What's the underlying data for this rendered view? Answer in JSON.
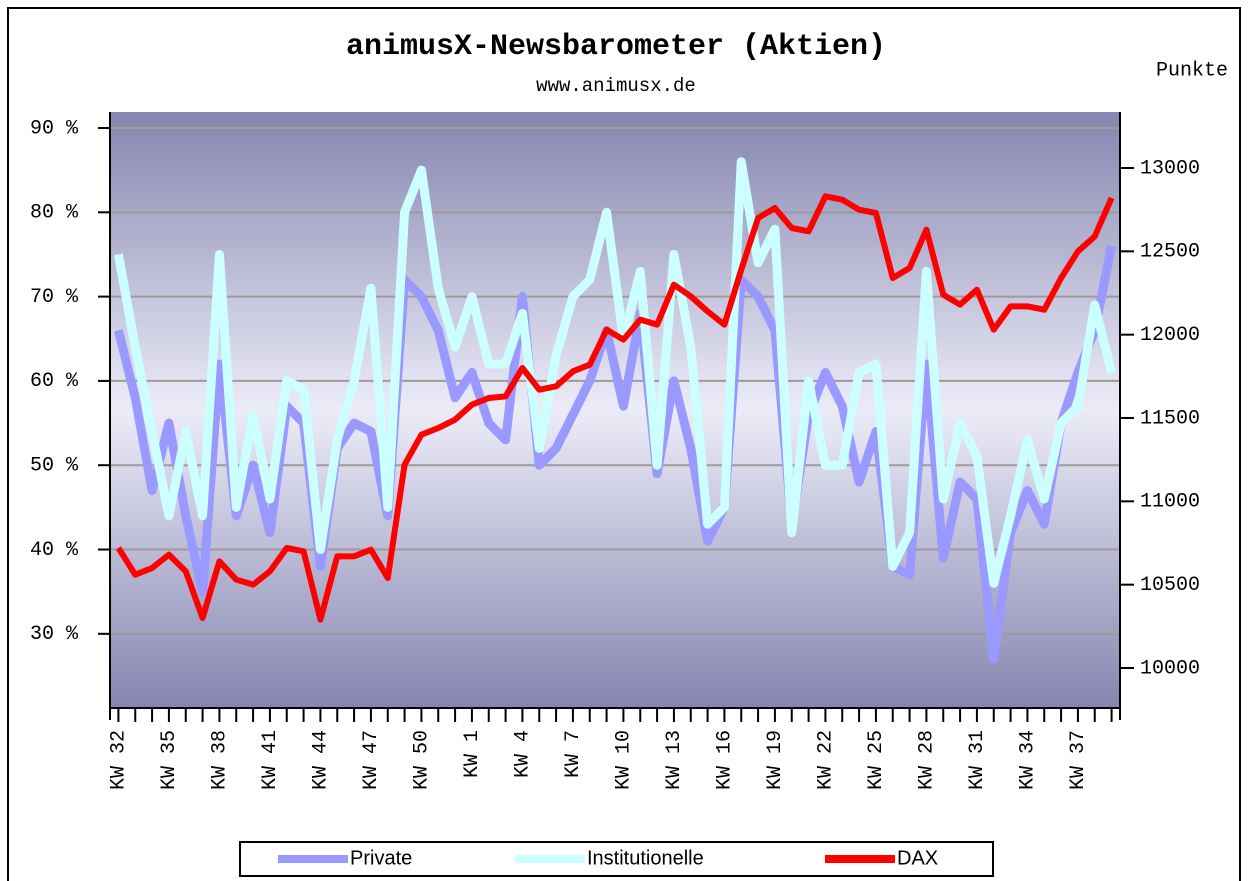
{
  "chart_data": {
    "type": "line",
    "title": "animusX-Newsbarometer (Aktien)",
    "subtitle": "www.animusx.de",
    "y2_label": "Punkte",
    "categories": [
      "KW 32",
      null,
      null,
      "KW 35",
      null,
      null,
      "KW 38",
      null,
      null,
      "KW 41",
      null,
      null,
      "KW 44",
      null,
      null,
      "KW 47",
      null,
      null,
      "KW 50",
      null,
      null,
      "KW 1",
      null,
      null,
      "KW 4",
      null,
      null,
      "KW 7",
      null,
      null,
      "KW 10",
      null,
      null,
      "KW 13",
      null,
      null,
      "KW 16",
      null,
      null,
      "KW 19",
      null,
      null,
      "KW 22",
      null,
      null,
      "KW 25",
      null,
      null,
      "KW 28",
      null,
      null,
      "KW 31",
      null,
      null,
      "KW 34",
      null,
      null,
      "KW 37",
      null,
      null
    ],
    "series": [
      {
        "name": "Private",
        "color": "#9999ff",
        "values": [
          66,
          58,
          47,
          55,
          44,
          35,
          62,
          44,
          50,
          42,
          57,
          55,
          38,
          52,
          55,
          54,
          44,
          72,
          70,
          66,
          58,
          61,
          55,
          53,
          70,
          50,
          52,
          56,
          60,
          66,
          57,
          68,
          49,
          60,
          52,
          41,
          45,
          72,
          70,
          66,
          43,
          56,
          61,
          57,
          48,
          54,
          38,
          37,
          62,
          39,
          48,
          46,
          27,
          42,
          47,
          43,
          55,
          61,
          66,
          76
        ]
      },
      {
        "name": "Institutionelle",
        "color": "#ccffff",
        "values": [
          75,
          64,
          54,
          44,
          54,
          44,
          75,
          45,
          56,
          46,
          60,
          59,
          40,
          53,
          60,
          71,
          45,
          80,
          85,
          71,
          64,
          70,
          62,
          62,
          68,
          52,
          63,
          70,
          72,
          80,
          65,
          73,
          50,
          75,
          64,
          43,
          45,
          86,
          74,
          78,
          42,
          60,
          50,
          50,
          61,
          62,
          38,
          42,
          73,
          46,
          55,
          51,
          36,
          44,
          53,
          46,
          55,
          57,
          69,
          61
        ]
      },
      {
        "name": "DAX",
        "color": "#ff0000",
        "axis": "y2",
        "values": [
          10720,
          10560,
          10600,
          10680,
          10580,
          10300,
          10640,
          10530,
          10500,
          10580,
          10720,
          10700,
          10290,
          10670,
          10670,
          10710,
          10540,
          11220,
          11400,
          11440,
          11490,
          11580,
          11620,
          11630,
          11800,
          11670,
          11690,
          11780,
          11820,
          12030,
          11970,
          12090,
          12060,
          12300,
          12230,
          12140,
          12060,
          12390,
          12700,
          12760,
          12640,
          12620,
          12830,
          12810,
          12750,
          12730,
          12340,
          12400,
          12630,
          12240,
          12180,
          12270,
          12030,
          12170,
          12170,
          12150,
          12340,
          12500,
          12590,
          12820
        ]
      }
    ],
    "ylim": [
      21.2,
      91.9
    ],
    "yticks": [
      {
        "value": 30,
        "label": "30 %"
      },
      {
        "value": 40,
        "label": "40 %"
      },
      {
        "value": 50,
        "label": "50 %"
      },
      {
        "value": 60,
        "label": "60 %"
      },
      {
        "value": 70,
        "label": "70 %"
      },
      {
        "value": 80,
        "label": "80 %"
      },
      {
        "value": 90,
        "label": "90 %"
      }
    ],
    "y2lim": [
      9760,
      13336
    ],
    "y2ticks": [
      10000,
      10500,
      11000,
      11500,
      12000,
      12500,
      13000
    ],
    "grid": true,
    "legend": "bottom"
  }
}
